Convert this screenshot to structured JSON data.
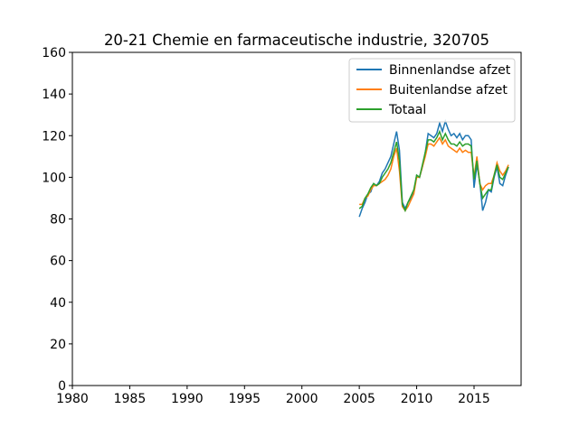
{
  "chart_data": {
    "type": "line",
    "title": "20-21 Chemie en farmaceutische industrie, 320705",
    "x": [
      2005,
      2005.25,
      2005.5,
      2005.75,
      2006,
      2006.25,
      2006.5,
      2006.75,
      2007,
      2007.25,
      2007.5,
      2007.75,
      2008,
      2008.25,
      2008.5,
      2008.75,
      2009,
      2009.25,
      2009.5,
      2009.75,
      2010,
      2010.25,
      2010.5,
      2010.75,
      2011,
      2011.25,
      2011.5,
      2011.75,
      2012,
      2012.25,
      2012.5,
      2012.75,
      2013,
      2013.25,
      2013.5,
      2013.75,
      2014,
      2014.25,
      2014.5,
      2014.75,
      2015,
      2015.25,
      2015.5,
      2015.75,
      2016,
      2016.25,
      2016.5,
      2016.75,
      2017,
      2017.25,
      2017.5,
      2017.75,
      2018
    ],
    "series": [
      {
        "name": "Binnenlandse afzet",
        "color": "#1f77b4",
        "values": [
          81,
          85,
          88,
          92,
          93,
          97,
          96,
          98,
          102,
          104,
          107,
          110,
          116,
          122,
          113,
          88,
          85,
          88,
          90,
          93,
          101,
          100,
          105,
          112,
          121,
          120,
          119,
          121,
          126,
          122,
          127,
          123,
          120,
          121,
          119,
          121,
          118,
          120,
          120,
          118,
          95,
          106,
          98,
          84,
          88,
          94,
          93,
          100,
          105,
          97,
          96,
          101,
          105
        ]
      },
      {
        "name": "Buitenlandse afzet",
        "color": "#ff7f0e",
        "values": [
          87,
          87,
          90,
          91,
          94,
          96,
          96,
          97,
          98,
          99,
          101,
          104,
          110,
          114,
          103,
          86,
          84,
          86,
          89,
          92,
          100,
          100,
          105,
          110,
          116,
          116,
          115,
          117,
          119,
          116,
          118,
          115,
          114,
          113,
          112,
          114,
          112,
          113,
          112,
          112,
          100,
          110,
          97,
          94,
          96,
          97,
          97,
          101,
          107,
          103,
          101,
          103,
          106
        ]
      },
      {
        "name": "Totaal",
        "color": "#2ca02c",
        "values": [
          85,
          86,
          90,
          92,
          95,
          97,
          96,
          97,
          100,
          102,
          104,
          107,
          112,
          117,
          108,
          87,
          84,
          88,
          91,
          94,
          101,
          100,
          106,
          112,
          118,
          118,
          117,
          119,
          122,
          118,
          121,
          118,
          116,
          116,
          115,
          117,
          115,
          116,
          116,
          115,
          99,
          108,
          97,
          90,
          92,
          94,
          94,
          101,
          106,
          100,
          99,
          102,
          105
        ]
      }
    ],
    "xlim": [
      1980,
      2019.1
    ],
    "xticks": [
      1980,
      1985,
      1990,
      1995,
      2000,
      2005,
      2010,
      2015
    ],
    "ylim": [
      0,
      160
    ],
    "yticks": [
      0,
      20,
      40,
      60,
      80,
      100,
      120,
      140,
      160
    ],
    "grid": false,
    "legend": "upper right"
  }
}
